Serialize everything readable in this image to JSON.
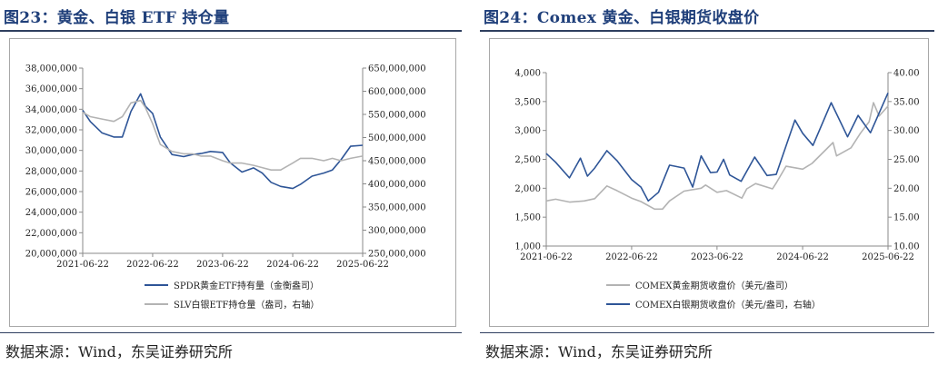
{
  "panels": [
    {
      "title": "图23：黄金、白银 ETF 持仓量",
      "source": "数据来源：Wind，东吴证券研究所",
      "legend": [
        {
          "label": "SPDR黄金ETF持有量（金衡盎司）",
          "color": "#2e5597"
        },
        {
          "label": "SLV白银ETF持仓量（盎司，右轴）",
          "color": "#b3b3b3"
        }
      ]
    },
    {
      "title": "图24：Comex 黄金、白银期货收盘价",
      "source": "数据来源：Wind，东吴证券研究所",
      "legend": [
        {
          "label": "COMEX黄金期货收盘价（美元/盎司）",
          "color": "#b3b3b3"
        },
        {
          "label": "COMEX白银期货收盘价（美元/盎司，右轴）",
          "color": "#2e5597"
        }
      ]
    }
  ],
  "chart_data": [
    {
      "type": "line",
      "x_ticks": [
        "2021-06-22",
        "2022-06-22",
        "2023-06-22",
        "2024-06-22",
        "2025-06-22"
      ],
      "y_left": {
        "min": 20000000,
        "max": 38000000,
        "step": 2000000,
        "ticks": [
          "20,000,000",
          "22,000,000",
          "24,000,000",
          "26,000,000",
          "28,000,000",
          "30,000,000",
          "32,000,000",
          "34,000,000",
          "36,000,000",
          "38,000,000"
        ]
      },
      "y_right": {
        "min": 250000000,
        "max": 650000000,
        "step": 50000000,
        "ticks": [
          "250,000,000",
          "300,000,000",
          "350,000,000",
          "400,000,000",
          "450,000,000",
          "500,000,000",
          "550,000,000",
          "600,000,000",
          "650,000,000"
        ]
      },
      "series": [
        {
          "name": "SPDR黄金ETF持有量（金衡盎司）",
          "axis": "left",
          "color": "#2e5597",
          "x": [
            "2021-06-22",
            "2021-08-01",
            "2021-10-01",
            "2021-12-01",
            "2022-01-15",
            "2022-03-01",
            "2022-04-20",
            "2022-05-15",
            "2022-06-22",
            "2022-08-01",
            "2022-10-01",
            "2022-12-01",
            "2023-01-15",
            "2023-03-01",
            "2023-04-20",
            "2023-06-22",
            "2023-08-01",
            "2023-10-01",
            "2023-12-01",
            "2024-01-15",
            "2024-03-01",
            "2024-04-20",
            "2024-06-22",
            "2024-08-01",
            "2024-10-01",
            "2024-12-01",
            "2025-01-15",
            "2025-03-01",
            "2025-04-20",
            "2025-06-22"
          ],
          "y": [
            33900000,
            32800000,
            31700000,
            31300000,
            31300000,
            33800000,
            35500000,
            34300000,
            33600000,
            31300000,
            29600000,
            29400000,
            29600000,
            29700000,
            29900000,
            29800000,
            28800000,
            27900000,
            28300000,
            27800000,
            26900000,
            26500000,
            26300000,
            26700000,
            27500000,
            27800000,
            28100000,
            29100000,
            30400000,
            30500000
          ]
        },
        {
          "name": "SLV白银ETF持仓量（盎司，右轴）",
          "axis": "right",
          "color": "#b3b3b3",
          "x": [
            "2021-06-22",
            "2021-08-01",
            "2021-10-01",
            "2021-12-01",
            "2022-01-15",
            "2022-03-01",
            "2022-04-20",
            "2022-05-15",
            "2022-06-22",
            "2022-08-01",
            "2022-10-01",
            "2022-12-01",
            "2023-01-15",
            "2023-03-01",
            "2023-04-20",
            "2023-06-22",
            "2023-08-01",
            "2023-10-01",
            "2023-12-01",
            "2024-01-15",
            "2024-03-01",
            "2024-04-20",
            "2024-06-22",
            "2024-08-01",
            "2024-10-01",
            "2024-12-01",
            "2025-01-15",
            "2025-03-01",
            "2025-04-20",
            "2025-06-22"
          ],
          "y": [
            555000000,
            545000000,
            540000000,
            535000000,
            545000000,
            575000000,
            580000000,
            565000000,
            530000000,
            485000000,
            470000000,
            465000000,
            465000000,
            460000000,
            460000000,
            450000000,
            445000000,
            445000000,
            440000000,
            435000000,
            430000000,
            430000000,
            445000000,
            455000000,
            455000000,
            450000000,
            455000000,
            450000000,
            455000000,
            460000000
          ]
        }
      ]
    },
    {
      "type": "line",
      "x_ticks": [
        "2021-06-22",
        "2022-06-22",
        "2023-06-22",
        "2024-06-22",
        "2025-06-22"
      ],
      "y_left": {
        "min": 1000,
        "max": 4000,
        "step": 500,
        "ticks": [
          "1,000",
          "1,500",
          "2,000",
          "2,500",
          "3,000",
          "3,500",
          "4,000"
        ]
      },
      "y_right": {
        "min": 10,
        "max": 40,
        "step": 5,
        "ticks": [
          "10.00",
          "15.00",
          "20.00",
          "25.00",
          "30.00",
          "35.00",
          "40.00"
        ]
      },
      "series": [
        {
          "name": "COMEX黄金期货收盘价（美元/盎司）",
          "axis": "left",
          "color": "#b3b3b3",
          "x": [
            "2021-06-22",
            "2021-08-01",
            "2021-10-01",
            "2021-12-01",
            "2022-01-15",
            "2022-03-08",
            "2022-04-20",
            "2022-06-22",
            "2022-08-01",
            "2022-09-28",
            "2022-11-01",
            "2022-12-01",
            "2023-02-01",
            "2023-04-15",
            "2023-05-04",
            "2023-06-22",
            "2023-08-01",
            "2023-10-06",
            "2023-10-27",
            "2023-12-04",
            "2024-02-14",
            "2024-03-01",
            "2024-04-12",
            "2024-06-22",
            "2024-08-01",
            "2024-10-30",
            "2024-11-14",
            "2025-01-15",
            "2025-02-24",
            "2025-04-02",
            "2025-04-21",
            "2025-05-15",
            "2025-06-22"
          ],
          "y": [
            1780,
            1810,
            1760,
            1780,
            1820,
            2040,
            1960,
            1830,
            1770,
            1640,
            1640,
            1780,
            1950,
            2000,
            2055,
            1930,
            1960,
            1830,
            1990,
            2080,
            1990,
            2090,
            2380,
            2330,
            2430,
            2790,
            2560,
            2700,
            2950,
            3150,
            3480,
            3250,
            3420
          ]
        },
        {
          "name": "COMEX白银期货收盘价（美元/盎司，右轴）",
          "axis": "right",
          "color": "#2e5597",
          "x": [
            "2021-06-22",
            "2021-08-01",
            "2021-09-29",
            "2021-11-15",
            "2021-12-15",
            "2022-01-15",
            "2022-03-08",
            "2022-04-20",
            "2022-06-22",
            "2022-08-01",
            "2022-09-01",
            "2022-10-15",
            "2022-12-01",
            "2023-02-01",
            "2023-03-10",
            "2023-04-15",
            "2023-05-25",
            "2023-06-22",
            "2023-07-20",
            "2023-08-15",
            "2023-10-03",
            "2023-11-30",
            "2024-01-22",
            "2024-03-01",
            "2024-05-20",
            "2024-06-22",
            "2024-08-05",
            "2024-10-22",
            "2024-12-31",
            "2025-02-14",
            "2025-04-08",
            "2025-05-15",
            "2025-06-22"
          ],
          "y": [
            26.0,
            24.5,
            21.8,
            25.2,
            22.1,
            23.5,
            26.5,
            24.8,
            21.5,
            20.2,
            17.8,
            19.3,
            24.0,
            23.5,
            20.2,
            25.6,
            22.7,
            22.8,
            25.0,
            22.3,
            21.2,
            25.4,
            22.2,
            22.4,
            31.8,
            29.5,
            27.4,
            34.8,
            28.9,
            32.6,
            29.6,
            33.0,
            36.5
          ]
        }
      ]
    }
  ]
}
